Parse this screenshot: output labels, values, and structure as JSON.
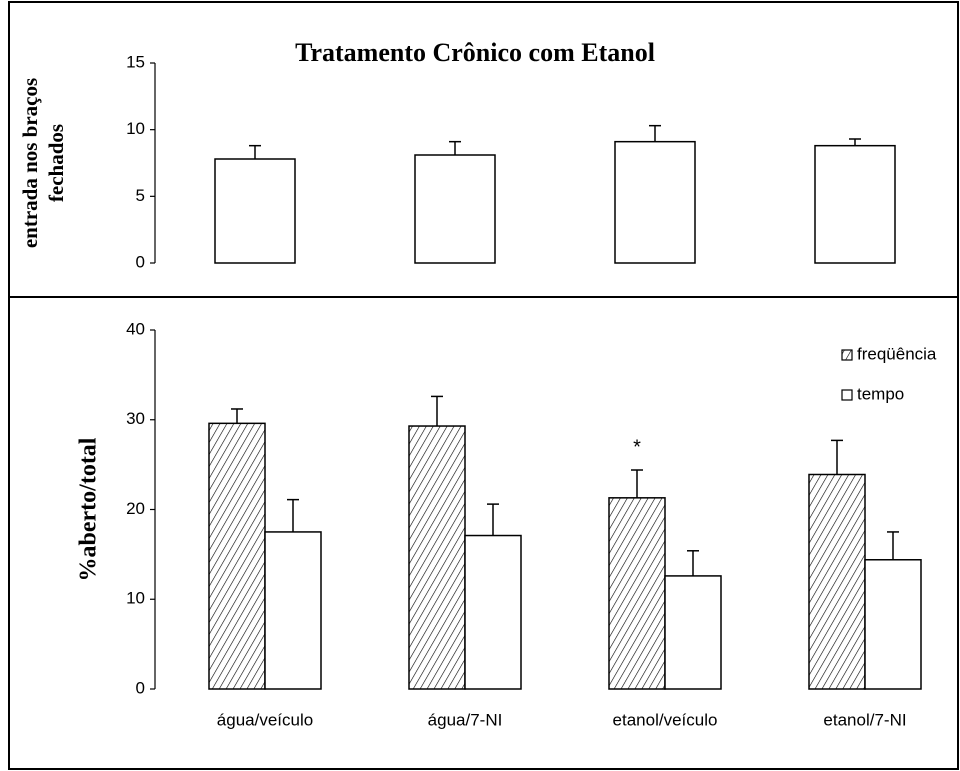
{
  "chart_data": [
    {
      "type": "bar",
      "title": "Tratamento Crônico com Etanol",
      "ylabel": [
        "entrada nos braços",
        "fechados"
      ],
      "values": [
        7.8,
        8.1,
        9.1,
        8.8
      ],
      "errors": [
        1.0,
        1.0,
        1.2,
        0.5
      ],
      "color": "#ffffff",
      "ylim": [
        0,
        15
      ],
      "yticks": [
        0,
        5,
        10,
        15
      ]
    },
    {
      "type": "grouped-bar",
      "ylabel": "%aberto/total",
      "categories": [
        "água/veículo",
        "água/7-NI",
        "etanol/veículo",
        "etanol/7-NI"
      ],
      "series": [
        {
          "name": "freqüência",
          "color": "#ffffff",
          "hatch": true,
          "values": [
            29.6,
            29.3,
            21.3,
            23.9
          ],
          "errors": [
            1.6,
            3.3,
            3.1,
            3.8
          ]
        },
        {
          "name": "tempo",
          "color": "#ffffff",
          "hatch": false,
          "values": [
            17.5,
            17.1,
            12.6,
            14.4
          ],
          "errors": [
            3.6,
            3.5,
            2.8,
            3.1
          ]
        }
      ],
      "annotations": [
        "*"
      ],
      "ylim": [
        0,
        40
      ],
      "yticks": [
        0,
        10,
        20,
        30,
        40
      ],
      "legend": "top-right"
    }
  ]
}
